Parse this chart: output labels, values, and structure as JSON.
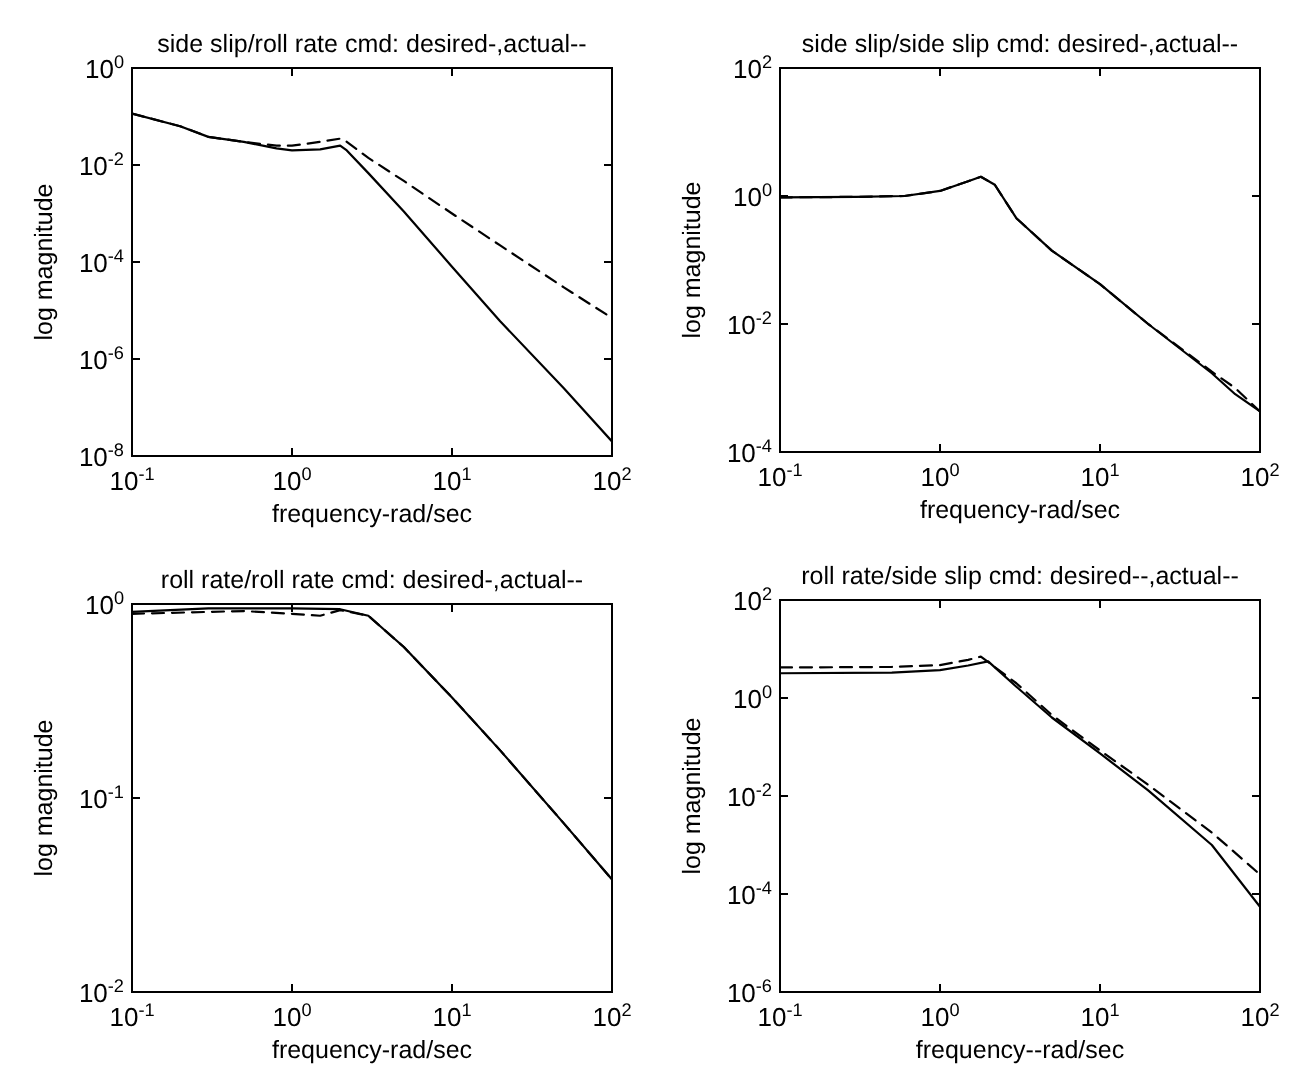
{
  "chart_data": [
    {
      "type": "line",
      "title": "side slip/roll rate cmd: desired-,actual--",
      "xlabel": "frequency-rad/sec",
      "ylabel": "log magnitude",
      "log": "xy",
      "xlim": [
        0.1,
        100
      ],
      "ylim": [
        1e-08,
        1
      ],
      "xticks": [
        {
          "value": 0.1,
          "label": "10$^{-1}$"
        },
        {
          "value": 1,
          "label": "10$^{0}$"
        },
        {
          "value": 10,
          "label": "10$^{1}$"
        },
        {
          "value": 100,
          "label": "10$^{2}$"
        }
      ],
      "yticks": [
        {
          "value": 1e-08,
          "label": "10$^{-8}$"
        },
        {
          "value": 1e-06,
          "label": "10$^{-6}$"
        },
        {
          "value": 0.0001,
          "label": "10$^{-4}$"
        },
        {
          "value": 0.01,
          "label": "10$^{-2}$"
        },
        {
          "value": 1,
          "label": "10$^{0}$"
        }
      ],
      "series": [
        {
          "color": "#000000",
          "line_style": "solid",
          "x": [
            0.1,
            0.2,
            0.3,
            0.5,
            0.8,
            1,
            1.5,
            2,
            2.2,
            3,
            5,
            10,
            20,
            50,
            100
          ],
          "values": [
            0.115,
            0.063,
            0.038,
            0.03,
            0.022,
            0.02,
            0.021,
            0.025,
            0.02,
            0.0068,
            0.0011,
            8e-05,
            6e-06,
            2.5e-07,
            2e-08
          ]
        },
        {
          "color": "#000000",
          "line_style": "dashed",
          "x": [
            0.1,
            0.2,
            0.3,
            0.5,
            0.8,
            1,
            1.5,
            2,
            2.2,
            3,
            5,
            10,
            20,
            50,
            100
          ],
          "values": [
            0.115,
            0.063,
            0.038,
            0.03,
            0.025,
            0.025,
            0.03,
            0.035,
            0.03,
            0.014,
            0.0047,
            0.001,
            0.00022,
            3e-05,
            7e-06
          ]
        }
      ]
    },
    {
      "type": "line",
      "title": "side slip/side slip cmd: desired-,actual--",
      "xlabel": "frequency-rad/sec",
      "ylabel": "log magnitude",
      "log": "xy",
      "xlim": [
        0.1,
        100
      ],
      "ylim": [
        0.0001,
        100
      ],
      "xticks": [
        {
          "value": 0.1,
          "label": "10$^{-1}$"
        },
        {
          "value": 1,
          "label": "10$^{0}$"
        },
        {
          "value": 10,
          "label": "10$^{1}$"
        },
        {
          "value": 100,
          "label": "10$^{2}$"
        }
      ],
      "yticks": [
        {
          "value": 0.0001,
          "label": "10$^{-4}$"
        },
        {
          "value": 0.01,
          "label": "10$^{-2}$"
        },
        {
          "value": 1,
          "label": "10$^{0}$"
        },
        {
          "value": 100,
          "label": "10$^{2}$"
        }
      ],
      "series": [
        {
          "color": "#000000",
          "line_style": "solid",
          "x": [
            0.1,
            0.3,
            0.6,
            1,
            1.5,
            1.8,
            2.2,
            3,
            5,
            10,
            20,
            50,
            70,
            100
          ],
          "values": [
            0.95,
            0.97,
            1.0,
            1.2,
            1.7,
            2.0,
            1.5,
            0.45,
            0.14,
            0.042,
            0.01,
            0.0017,
            0.0008,
            0.00043
          ]
        },
        {
          "color": "#000000",
          "line_style": "dashed",
          "x": [
            0.1,
            0.3,
            0.6,
            1,
            1.5,
            1.8,
            2.2,
            3,
            5,
            10,
            20,
            50,
            70,
            100
          ],
          "values": [
            0.95,
            0.97,
            1.0,
            1.2,
            1.7,
            2.0,
            1.5,
            0.45,
            0.14,
            0.042,
            0.01,
            0.0018,
            0.001,
            0.00043
          ]
        }
      ]
    },
    {
      "type": "line",
      "title": "roll rate/roll rate cmd: desired-,actual--",
      "xlabel": "frequency-rad/sec",
      "ylabel": "log magnitude",
      "log": "xy",
      "xlim": [
        0.1,
        100
      ],
      "ylim": [
        0.01,
        1
      ],
      "xticks": [
        {
          "value": 0.1,
          "label": "10$^{-1}$"
        },
        {
          "value": 1,
          "label": "10$^{0}$"
        },
        {
          "value": 10,
          "label": "10$^{1}$"
        },
        {
          "value": 100,
          "label": "10$^{2}$"
        }
      ],
      "yticks": [
        {
          "value": 0.01,
          "label": "10$^{-2}$"
        },
        {
          "value": 0.1,
          "label": "10$^{-1}$"
        },
        {
          "value": 1,
          "label": "10$^{0}$"
        }
      ],
      "series": [
        {
          "color": "#000000",
          "line_style": "solid",
          "x": [
            0.1,
            0.3,
            1,
            2,
            3,
            5,
            10,
            20,
            50,
            100
          ],
          "values": [
            0.91,
            0.95,
            0.95,
            0.94,
            0.87,
            0.6,
            0.33,
            0.176,
            0.074,
            0.038
          ]
        },
        {
          "color": "#000000",
          "line_style": "dashed",
          "x": [
            0.1,
            0.5,
            1,
            1.5,
            2,
            3,
            5,
            10,
            20,
            50,
            100
          ],
          "values": [
            0.89,
            0.92,
            0.89,
            0.87,
            0.93,
            0.87,
            0.6,
            0.33,
            0.176,
            0.074,
            0.038
          ]
        }
      ]
    },
    {
      "type": "line",
      "title": "roll rate/side slip cmd: desired--,actual--",
      "xlabel": "frequency--rad/sec",
      "ylabel": "log magnitude",
      "log": "xy",
      "xlim": [
        0.1,
        100
      ],
      "ylim": [
        1e-06,
        100
      ],
      "xticks": [
        {
          "value": 0.1,
          "label": "10$^{-1}$"
        },
        {
          "value": 1,
          "label": "10$^{0}$"
        },
        {
          "value": 10,
          "label": "10$^{1}$"
        },
        {
          "value": 100,
          "label": "10$^{2}$"
        }
      ],
      "yticks": [
        {
          "value": 1e-06,
          "label": "10$^{-6}$"
        },
        {
          "value": 0.0001,
          "label": "10$^{-4}$"
        },
        {
          "value": 0.01,
          "label": "10$^{-2}$"
        },
        {
          "value": 1,
          "label": "10$^{0}$"
        },
        {
          "value": 100,
          "label": "10$^{2}$"
        }
      ],
      "series": [
        {
          "color": "#000000",
          "line_style": "solid",
          "x": [
            0.1,
            0.5,
            1,
            1.5,
            2,
            3,
            5,
            10,
            20,
            50,
            100
          ],
          "values": [
            3.2,
            3.3,
            3.7,
            4.6,
            5.6,
            1.7,
            0.4,
            0.074,
            0.013,
            0.001,
            5.5e-05
          ]
        },
        {
          "color": "#000000",
          "line_style": "dashed",
          "x": [
            0.1,
            0.5,
            1,
            1.5,
            1.8,
            3,
            5,
            10,
            20,
            50,
            100
          ],
          "values": [
            4.2,
            4.3,
            4.7,
            6,
            7,
            2,
            0.45,
            0.085,
            0.017,
            0.0018,
            0.00025
          ]
        }
      ]
    }
  ]
}
